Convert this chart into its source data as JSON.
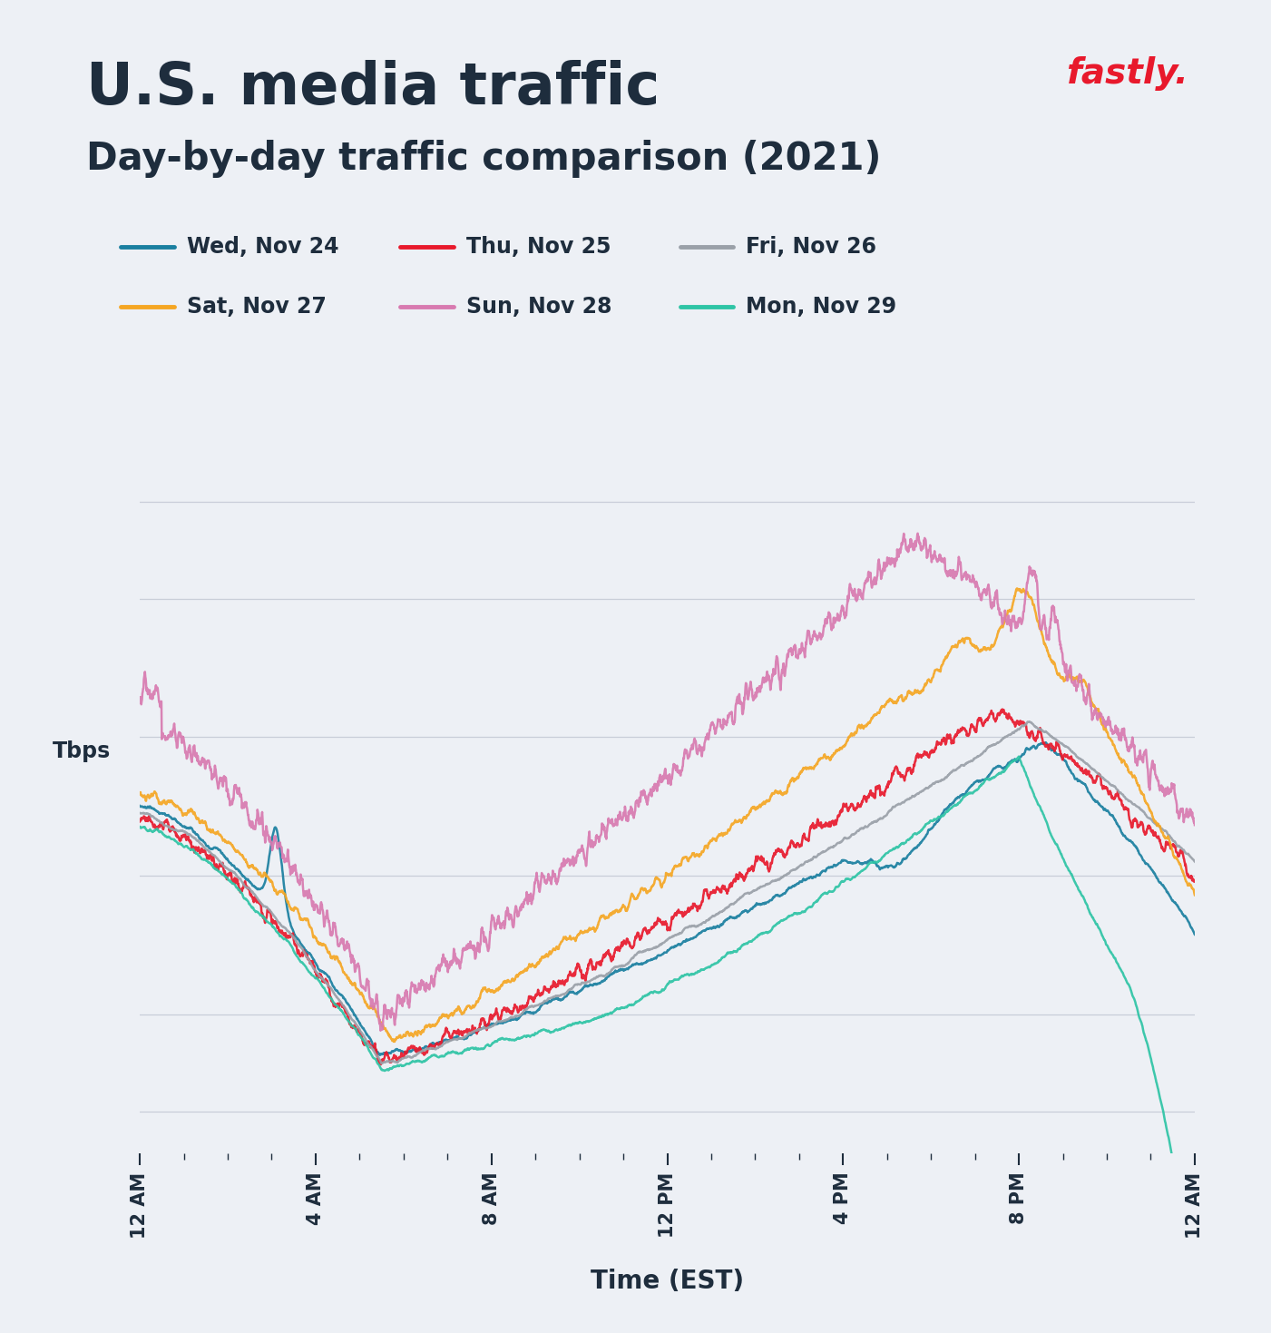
{
  "title": "U.S. media traffic",
  "subtitle": "Day-by-day traffic comparison (2021)",
  "xlabel": "Time (EST)",
  "ylabel": "Tbps",
  "background_color": "#edf0f5",
  "text_color": "#1e2d3d",
  "fastly_text": "fastly.",
  "fastly_color": "#e8192c",
  "xtick_labels": [
    "12 AM",
    "4 AM",
    "8 AM",
    "12 PM",
    "4 PM",
    "8 PM",
    "12 AM"
  ],
  "xtick_positions": [
    0,
    4,
    8,
    12,
    16,
    20,
    24
  ],
  "grid_color": "#c8cdd8",
  "series": [
    {
      "label": "Wed, Nov 24",
      "color": "#1a7fa0",
      "lw": 1.8
    },
    {
      "label": "Thu, Nov 25",
      "color": "#e8192c",
      "lw": 1.8
    },
    {
      "label": "Fri, Nov 26",
      "color": "#9aa0a8",
      "lw": 1.8
    },
    {
      "label": "Sat, Nov 27",
      "color": "#f5a623",
      "lw": 1.8
    },
    {
      "label": "Sun, Nov 28",
      "color": "#d87ab0",
      "lw": 1.8
    },
    {
      "label": "Mon, Nov 29",
      "color": "#2ec4a5",
      "lw": 1.8
    }
  ]
}
